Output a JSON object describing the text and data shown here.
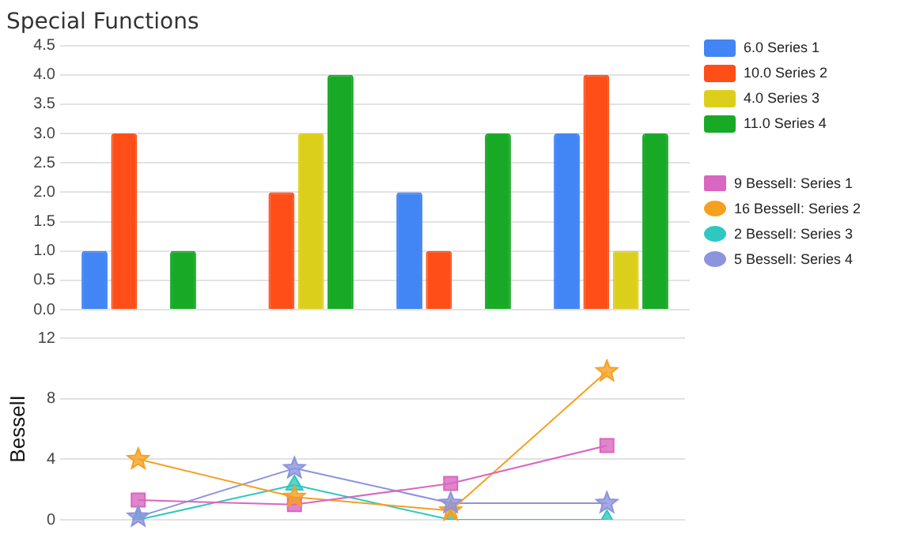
{
  "chart_data": [
    {
      "type": "bar",
      "title": "Special Functions",
      "categories": [
        null,
        null,
        null,
        null
      ],
      "series": [
        {
          "name": "6.0 Series 1",
          "color": "#4285f4",
          "values": [
            1,
            0,
            2,
            3
          ]
        },
        {
          "name": "10.0 Series 2",
          "color": "#ff4e17",
          "values": [
            3,
            2,
            1,
            4
          ]
        },
        {
          "name": "4.0 Series 3",
          "color": "#dccf1c",
          "values": [
            0,
            3,
            0,
            1
          ]
        },
        {
          "name": "11.0 Series 4",
          "color": "#18aa26",
          "values": [
            1,
            4,
            3,
            3
          ]
        }
      ],
      "ylim": [
        0,
        4.5
      ],
      "yticks": [
        {
          "value": 0,
          "label": "0.0"
        },
        0.5,
        {
          "value": 1,
          "label": "1.0"
        },
        1.5,
        {
          "value": 2,
          "label": "2.0"
        },
        2.5,
        {
          "value": 3,
          "label": "3.0"
        },
        3.5,
        {
          "value": 4,
          "label": "4.0"
        },
        4.5
      ],
      "grid": "y",
      "legend": "right"
    },
    {
      "type": "line",
      "ylabel": "BesselI",
      "categories": [
        null,
        null,
        null,
        null
      ],
      "series": [
        {
          "name": "9 BesselI: Series 1",
          "color": "#d966c0",
          "marker": "square",
          "values": [
            1.3,
            1.0,
            2.4,
            4.9
          ]
        },
        {
          "name": "16 BesselI: Series 2",
          "color": "#f6a020",
          "marker": "star",
          "values": [
            4.0,
            1.5,
            0.6,
            9.8
          ]
        },
        {
          "name": "2 BesselI: Series 3",
          "color": "#2ec8c0",
          "marker": "triangle",
          "values": [
            0,
            2.3,
            0,
            0
          ]
        },
        {
          "name": "5 BesselI: Series 4",
          "color": "#8c94dc",
          "marker": "star",
          "values": [
            0.2,
            3.4,
            1.1,
            1.1
          ]
        }
      ],
      "ylim": [
        0,
        12
      ],
      "yticks": [
        0,
        4,
        8,
        12
      ],
      "grid": "y",
      "legend": "right"
    }
  ]
}
